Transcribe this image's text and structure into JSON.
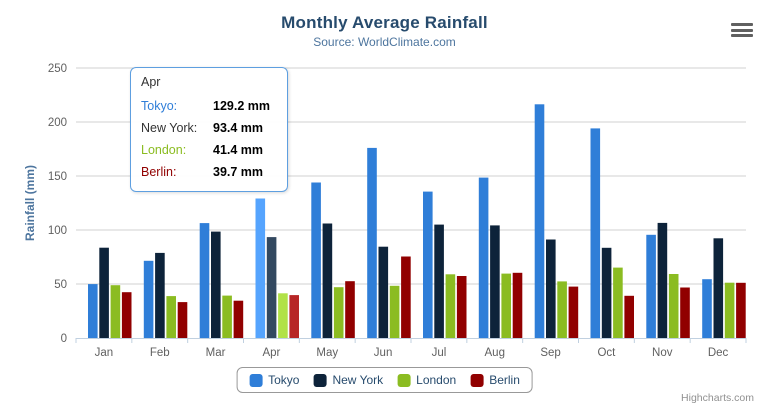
{
  "header": {
    "title": "Monthly Average Rainfall",
    "subtitle": "Source: WorldClimate.com"
  },
  "chart_data": {
    "type": "bar",
    "title": "Monthly Average Rainfall",
    "subtitle": "Source: WorldClimate.com",
    "xlabel": "",
    "ylabel": "Rainfall (mm)",
    "ylim": [
      0,
      250
    ],
    "yticks": [
      0,
      50,
      100,
      150,
      200,
      250
    ],
    "grid": true,
    "legend_position": "bottom",
    "hovered_category": "Apr",
    "categories": [
      "Jan",
      "Feb",
      "Mar",
      "Apr",
      "May",
      "Jun",
      "Jul",
      "Aug",
      "Sep",
      "Oct",
      "Nov",
      "Dec"
    ],
    "series": [
      {
        "name": "Tokyo",
        "color": "#2f7ed8",
        "values": [
          49.9,
          71.5,
          106.4,
          129.2,
          144.0,
          176.0,
          135.6,
          148.5,
          216.4,
          194.1,
          95.6,
          54.4
        ]
      },
      {
        "name": "New York",
        "color": "#0d233a",
        "values": [
          83.6,
          78.8,
          98.5,
          93.4,
          106.0,
          84.5,
          105.0,
          104.3,
          91.2,
          83.5,
          106.6,
          92.3
        ]
      },
      {
        "name": "London",
        "color": "#8bbc21",
        "values": [
          48.9,
          38.8,
          39.3,
          41.4,
          47.0,
          48.3,
          59.0,
          59.6,
          52.4,
          65.2,
          59.3,
          51.2
        ]
      },
      {
        "name": "Berlin",
        "color": "#910000",
        "values": [
          42.4,
          33.2,
          34.5,
          39.7,
          52.6,
          75.5,
          57.4,
          60.4,
          47.6,
          39.1,
          46.8,
          51.1
        ]
      }
    ],
    "axis_colors": {
      "gridline": "#d0d0d0",
      "axis_line": "#c0d0e0",
      "tick_label": "#606060"
    }
  },
  "tooltip": {
    "header": "Apr",
    "border_color": "#5e9fe0",
    "rows": [
      {
        "label": "Tokyo:",
        "value": "129.2 mm",
        "color": "#2f7ed8"
      },
      {
        "label": "New York:",
        "value": "93.4 mm",
        "color": "#333333"
      },
      {
        "label": "London:",
        "value": "41.4 mm",
        "color": "#8bbc21"
      },
      {
        "label": "Berlin:",
        "value": "39.7 mm",
        "color": "#910000"
      }
    ]
  },
  "credits": {
    "text": "Highcharts.com"
  }
}
